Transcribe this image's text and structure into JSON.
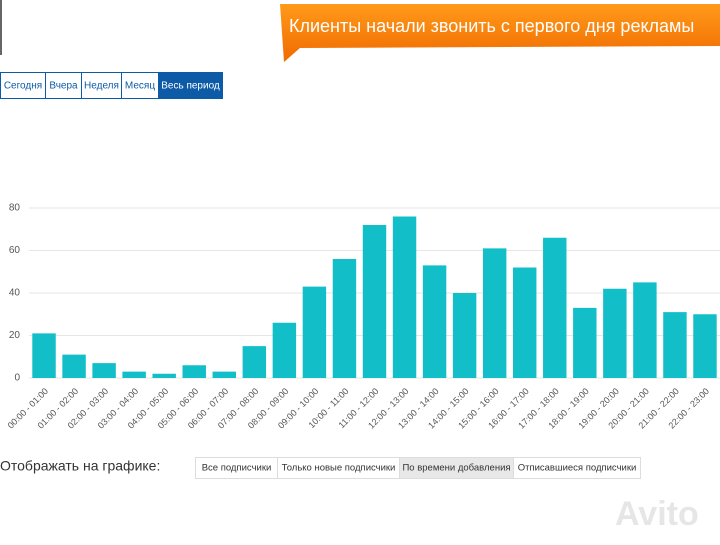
{
  "banner": {
    "title": "Клиенты начали звонить с первого дня рекламы"
  },
  "tabs": [
    "Сегодня",
    "Вчера",
    "Неделя",
    "Месяц",
    "Весь период"
  ],
  "chart_data": {
    "type": "bar",
    "categories": [
      "00:00 - 01:00",
      "01:00 - 02:00",
      "02:00 - 03:00",
      "03:00 - 04:00",
      "04:00 - 05:00",
      "05:00 - 06:00",
      "06:00 - 07:00",
      "07:00 - 08:00",
      "08:00 - 09:00",
      "09:00 - 10:00",
      "10:00 - 11:00",
      "11:00 - 12:00",
      "12:00 - 13:00",
      "13:00 - 14:00",
      "14:00 - 15:00",
      "15:00 - 16:00",
      "16:00 - 17:00",
      "17:00 - 18:00",
      "18:00 - 19:00",
      "19:00 - 20:00",
      "20:00 - 21:00",
      "21:00 - 22:00",
      "22:00 - 23:00"
    ],
    "values": [
      21,
      11,
      7,
      3,
      2,
      6,
      3,
      15,
      26,
      43,
      56,
      72,
      76,
      53,
      40,
      61,
      52,
      66,
      33,
      42,
      45,
      31,
      30
    ],
    "color": "#12bfc8",
    "ylim": [
      0,
      88
    ],
    "yticks": [
      0,
      20,
      40,
      60,
      80
    ],
    "grid": true
  },
  "filter": {
    "label": "Отображать на графике:",
    "options": [
      "Все подписчики",
      "Только новые подписчики",
      "По времени добавления",
      "Отписавшиеся подписчики"
    ]
  },
  "watermark": "Avito"
}
